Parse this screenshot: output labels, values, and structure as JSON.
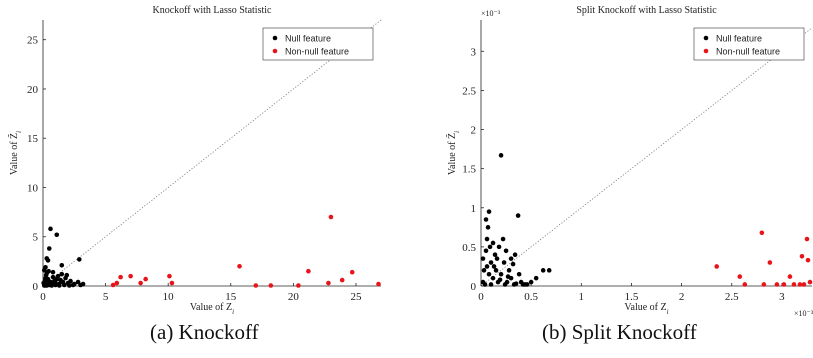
{
  "colors": {
    "null_feature": "#000000",
    "non_null_feature": "#e8141a",
    "axes": "#262626",
    "diagonal": "#777777"
  },
  "chart_data": [
    {
      "type": "scatter",
      "title": "Knockoff with Lasso Statistic",
      "xlabel_main": "Value of Z",
      "xlabel_sub": "i",
      "ylabel_main": "Value of Z̃",
      "ylabel_sub": "i",
      "xlim": [
        0,
        27
      ],
      "ylim": [
        0,
        27
      ],
      "xticks": [
        0,
        5,
        10,
        15,
        20,
        25
      ],
      "xtick_labels": [
        "0",
        "5",
        "10",
        "15",
        "20",
        "25"
      ],
      "yticks": [
        0,
        5,
        10,
        15,
        20,
        25
      ],
      "ytick_labels": [
        "0",
        "5",
        "10",
        "15",
        "20",
        "25"
      ],
      "exponent_x": "",
      "exponent_y": "",
      "diagonal": true,
      "legend_position": "top-right",
      "caption": "(a)  Knockoff",
      "series": [
        {
          "name": "Null feature",
          "points": [
            [
              0.1,
              0.2
            ],
            [
              0.15,
              0.5
            ],
            [
              0.2,
              0.8
            ],
            [
              0.25,
              1.1
            ],
            [
              0.3,
              1.3
            ],
            [
              0.1,
              1.6
            ],
            [
              0.2,
              1.9
            ],
            [
              0.35,
              0.3
            ],
            [
              0.4,
              0.7
            ],
            [
              0.5,
              0.1
            ],
            [
              0.6,
              0.4
            ],
            [
              0.7,
              0.2
            ],
            [
              0.8,
              0.9
            ],
            [
              0.9,
              0.5
            ],
            [
              1.0,
              0.3
            ],
            [
              1.1,
              0.7
            ],
            [
              1.2,
              1.0
            ],
            [
              1.3,
              0.2
            ],
            [
              1.4,
              0.6
            ],
            [
              1.5,
              1.2
            ],
            [
              1.6,
              0.4
            ],
            [
              1.8,
              0.8
            ],
            [
              2.0,
              0.3
            ],
            [
              2.2,
              0.5
            ],
            [
              2.5,
              0.2
            ],
            [
              2.8,
              0.4
            ],
            [
              3.0,
              0.1
            ],
            [
              3.2,
              0.2
            ],
            [
              0.3,
              2.8
            ],
            [
              0.4,
              2.6
            ],
            [
              0.5,
              3.8
            ],
            [
              0.6,
              5.8
            ],
            [
              1.1,
              5.2
            ],
            [
              2.9,
              2.7
            ],
            [
              1.5,
              2.1
            ],
            [
              0.2,
              0.05
            ],
            [
              0.05,
              0.3
            ],
            [
              0.45,
              1.5
            ],
            [
              0.8,
              1.4
            ],
            [
              1.9,
              1.1
            ],
            [
              0.1,
              0.05
            ],
            [
              0.2,
              0.1
            ],
            [
              0.3,
              0.05
            ],
            [
              0.5,
              0.2
            ],
            [
              0.7,
              0.05
            ],
            [
              1.0,
              0.1
            ],
            [
              1.3,
              0.05
            ],
            [
              1.7,
              0.1
            ],
            [
              2.1,
              0.05
            ],
            [
              2.4,
              0.1
            ]
          ]
        },
        {
          "name": "Non-null feature",
          "points": [
            [
              5.6,
              0.1
            ],
            [
              5.9,
              0.3
            ],
            [
              6.2,
              0.9
            ],
            [
              7.0,
              1.0
            ],
            [
              7.8,
              0.3
            ],
            [
              8.2,
              0.7
            ],
            [
              10.1,
              1.0
            ],
            [
              10.3,
              0.3
            ],
            [
              15.7,
              2.0
            ],
            [
              17.0,
              0.05
            ],
            [
              18.2,
              0.05
            ],
            [
              20.4,
              0.05
            ],
            [
              21.2,
              1.5
            ],
            [
              22.8,
              0.3
            ],
            [
              23.0,
              7.0
            ],
            [
              23.9,
              0.6
            ],
            [
              24.7,
              1.4
            ],
            [
              26.8,
              0.2
            ]
          ]
        }
      ]
    },
    {
      "type": "scatter",
      "title": "Split Knockoff with Lasso Statistic",
      "xlabel_main": "Value of Z",
      "xlabel_sub": "i",
      "ylabel_main": "Value of Z̃",
      "ylabel_sub": "i",
      "xlim": [
        0,
        3.3
      ],
      "ylim": [
        0,
        3.4
      ],
      "xticks": [
        0,
        0.5,
        1,
        1.5,
        2,
        2.5,
        3
      ],
      "xtick_labels": [
        "0",
        "0.5",
        "1",
        "1.5",
        "2",
        "2.5",
        "3"
      ],
      "yticks": [
        0,
        0.5,
        1,
        1.5,
        2,
        2.5,
        3
      ],
      "ytick_labels": [
        "0",
        "0.5",
        "1",
        "1.5",
        "2",
        "2.5",
        "3"
      ],
      "exponent_x": "×10⁻³",
      "exponent_y": "×10⁻³",
      "diagonal": true,
      "legend_position": "top-right",
      "caption": "(b)  Split Knockoff",
      "series": [
        {
          "name": "Null feature",
          "points": [
            [
              0.02,
              0.05
            ],
            [
              0.03,
              0.2
            ],
            [
              0.05,
              0.45
            ],
            [
              0.06,
              0.6
            ],
            [
              0.07,
              0.75
            ],
            [
              0.08,
              0.95
            ],
            [
              0.05,
              0.85
            ],
            [
              0.1,
              0.3
            ],
            [
              0.12,
              0.55
            ],
            [
              0.12,
              0.1
            ],
            [
              0.14,
              0.4
            ],
            [
              0.15,
              0.2
            ],
            [
              0.16,
              0.35
            ],
            [
              0.17,
              0.05
            ],
            [
              0.18,
              0.5
            ],
            [
              0.2,
              1.67
            ],
            [
              0.2,
              0.15
            ],
            [
              0.22,
              0.6
            ],
            [
              0.23,
              0.3
            ],
            [
              0.25,
              0.45
            ],
            [
              0.26,
              0.05
            ],
            [
              0.28,
              0.2
            ],
            [
              0.3,
              0.35
            ],
            [
              0.3,
              0.1
            ],
            [
              0.32,
              0.28
            ],
            [
              0.34,
              0.4
            ],
            [
              0.35,
              0.03
            ],
            [
              0.37,
              0.9
            ],
            [
              0.38,
              0.15
            ],
            [
              0.4,
              0.05
            ],
            [
              0.42,
              0.02
            ],
            [
              0.44,
              0.02
            ],
            [
              0.46,
              0.02
            ],
            [
              0.5,
              0.05
            ],
            [
              0.55,
              0.1
            ],
            [
              0.62,
              0.2
            ],
            [
              0.68,
              0.2
            ],
            [
              0.04,
              0.02
            ],
            [
              0.08,
              0.15
            ],
            [
              0.1,
              0.02
            ],
            [
              0.13,
              0.25
            ],
            [
              0.19,
              0.08
            ],
            [
              0.24,
              0.02
            ],
            [
              0.27,
              0.12
            ],
            [
              0.33,
              0.02
            ],
            [
              0.02,
              0.35
            ],
            [
              0.06,
              0.25
            ],
            [
              0.09,
              0.5
            ]
          ]
        },
        {
          "name": "Non-null feature",
          "points": [
            [
              2.35,
              0.25
            ],
            [
              2.58,
              0.12
            ],
            [
              2.63,
              0.02
            ],
            [
              2.8,
              0.68
            ],
            [
              2.82,
              0.02
            ],
            [
              2.88,
              0.3
            ],
            [
              2.95,
              0.02
            ],
            [
              3.02,
              0.02
            ],
            [
              3.08,
              0.12
            ],
            [
              3.12,
              0.02
            ],
            [
              3.18,
              0.02
            ],
            [
              3.2,
              0.38
            ],
            [
              3.22,
              0.02
            ],
            [
              3.25,
              0.6
            ],
            [
              3.26,
              0.33
            ],
            [
              3.28,
              0.05
            ]
          ]
        }
      ]
    }
  ]
}
